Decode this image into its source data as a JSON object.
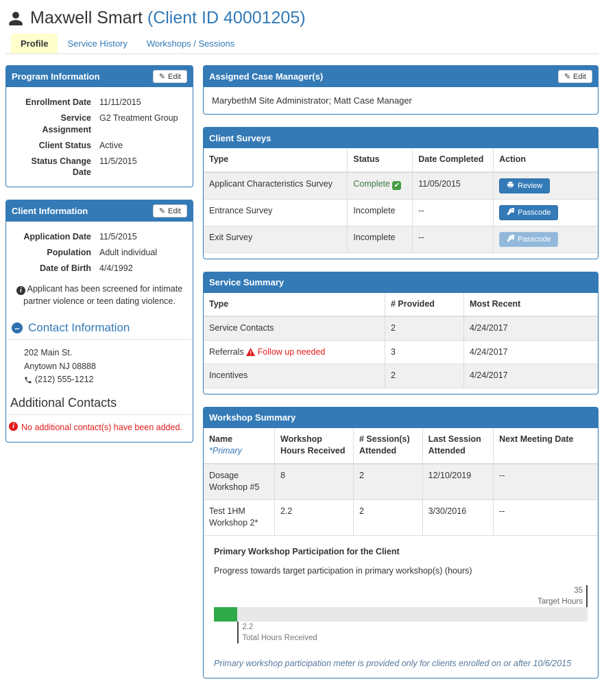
{
  "header": {
    "name": "Maxwell Smart",
    "client_id": "(Client ID 40001205)"
  },
  "tabs": {
    "profile": "Profile",
    "service_history": "Service History",
    "workshops": "Workshops / Sessions"
  },
  "program_info": {
    "title": "Program Information",
    "edit_label": "Edit",
    "rows": [
      {
        "label": "Enrollment Date",
        "value": "11/11/2015"
      },
      {
        "label": "Service Assignment",
        "value": "G2 Treatment Group"
      },
      {
        "label": "Client Status",
        "value": "Active"
      },
      {
        "label": "Status Change Date",
        "value": "11/5/2015"
      }
    ]
  },
  "client_info": {
    "title": "Client Information",
    "edit_label": "Edit",
    "rows": [
      {
        "label": "Application Date",
        "value": "11/5/2015"
      },
      {
        "label": "Population",
        "value": "Adult individual"
      },
      {
        "label": "Date of Birth",
        "value": "4/4/1992"
      }
    ],
    "screening_note": "Applicant has been screened for intimate partner violence or teen dating violence.",
    "contact_heading": "Contact Information",
    "address_line1": "202 Main St.",
    "address_line2": "Anytown NJ 08888",
    "phone": "(212) 555-1212",
    "additional_heading": "Additional Contacts",
    "no_contacts_note": "No additional contact(s) have been added."
  },
  "case_managers": {
    "title": "Assigned Case Manager(s)",
    "edit_label": "Edit",
    "value": "MarybethM Site Administrator; Matt Case Manager"
  },
  "client_surveys": {
    "title": "Client Surveys",
    "headers": {
      "type": "Type",
      "status": "Status",
      "date": "Date Completed",
      "action": "Action"
    },
    "rows": [
      {
        "type": "Applicant Characteristics Survey",
        "status": "Complete",
        "date": "11/05/2015",
        "action": "Review"
      },
      {
        "type": "Entrance Survey",
        "status": "Incomplete",
        "date": "--",
        "action": "Passcode"
      },
      {
        "type": "Exit Survey",
        "status": "Incomplete",
        "date": "--",
        "action": "Passcode"
      }
    ]
  },
  "service_summary": {
    "title": "Service Summary",
    "headers": {
      "type": "Type",
      "provided": "# Provided",
      "recent": "Most Recent"
    },
    "rows": [
      {
        "type": "Service Contacts",
        "warning": "",
        "provided": "2",
        "recent": "4/24/2017"
      },
      {
        "type": "Referrals",
        "warning": "Follow up needed",
        "provided": "3",
        "recent": "4/24/2017"
      },
      {
        "type": "Incentives",
        "warning": "",
        "provided": "2",
        "recent": "4/24/2017"
      }
    ]
  },
  "workshop_summary": {
    "title": "Workshop Summary",
    "headers": {
      "name": "Name",
      "name_note": "*Primary",
      "hours": "Workshop Hours Received",
      "sessions": "# Session(s) Attended",
      "last": "Last Session Attended",
      "next": "Next Meeting Date"
    },
    "rows": [
      {
        "name": "Dosage Workshop #5",
        "hours": "8",
        "sessions": "2",
        "last": "12/10/2019",
        "next": "--"
      },
      {
        "name": "Test 1HM Workshop 2*",
        "hours": "2.2",
        "sessions": "2",
        "last": "3/30/2016",
        "next": "--"
      }
    ],
    "participation": {
      "heading": "Primary Workshop Participation for the Client",
      "subheading": "Progress towards target participation in primary workshop(s) (hours)",
      "target": 35,
      "received": 2.2,
      "target_label": "Target Hours",
      "received_label": "Total Hours Received",
      "footnote": "Primary workshop participation meter is provided only for clients enrolled on or after 10/6/2015"
    }
  },
  "colors": {
    "panel_blue": "#337ab7",
    "tab_active_yellow": "#ffffcc",
    "success_green": "#3c763d",
    "progress_green": "#2faa4b",
    "alert_red": "#e21b1b"
  }
}
